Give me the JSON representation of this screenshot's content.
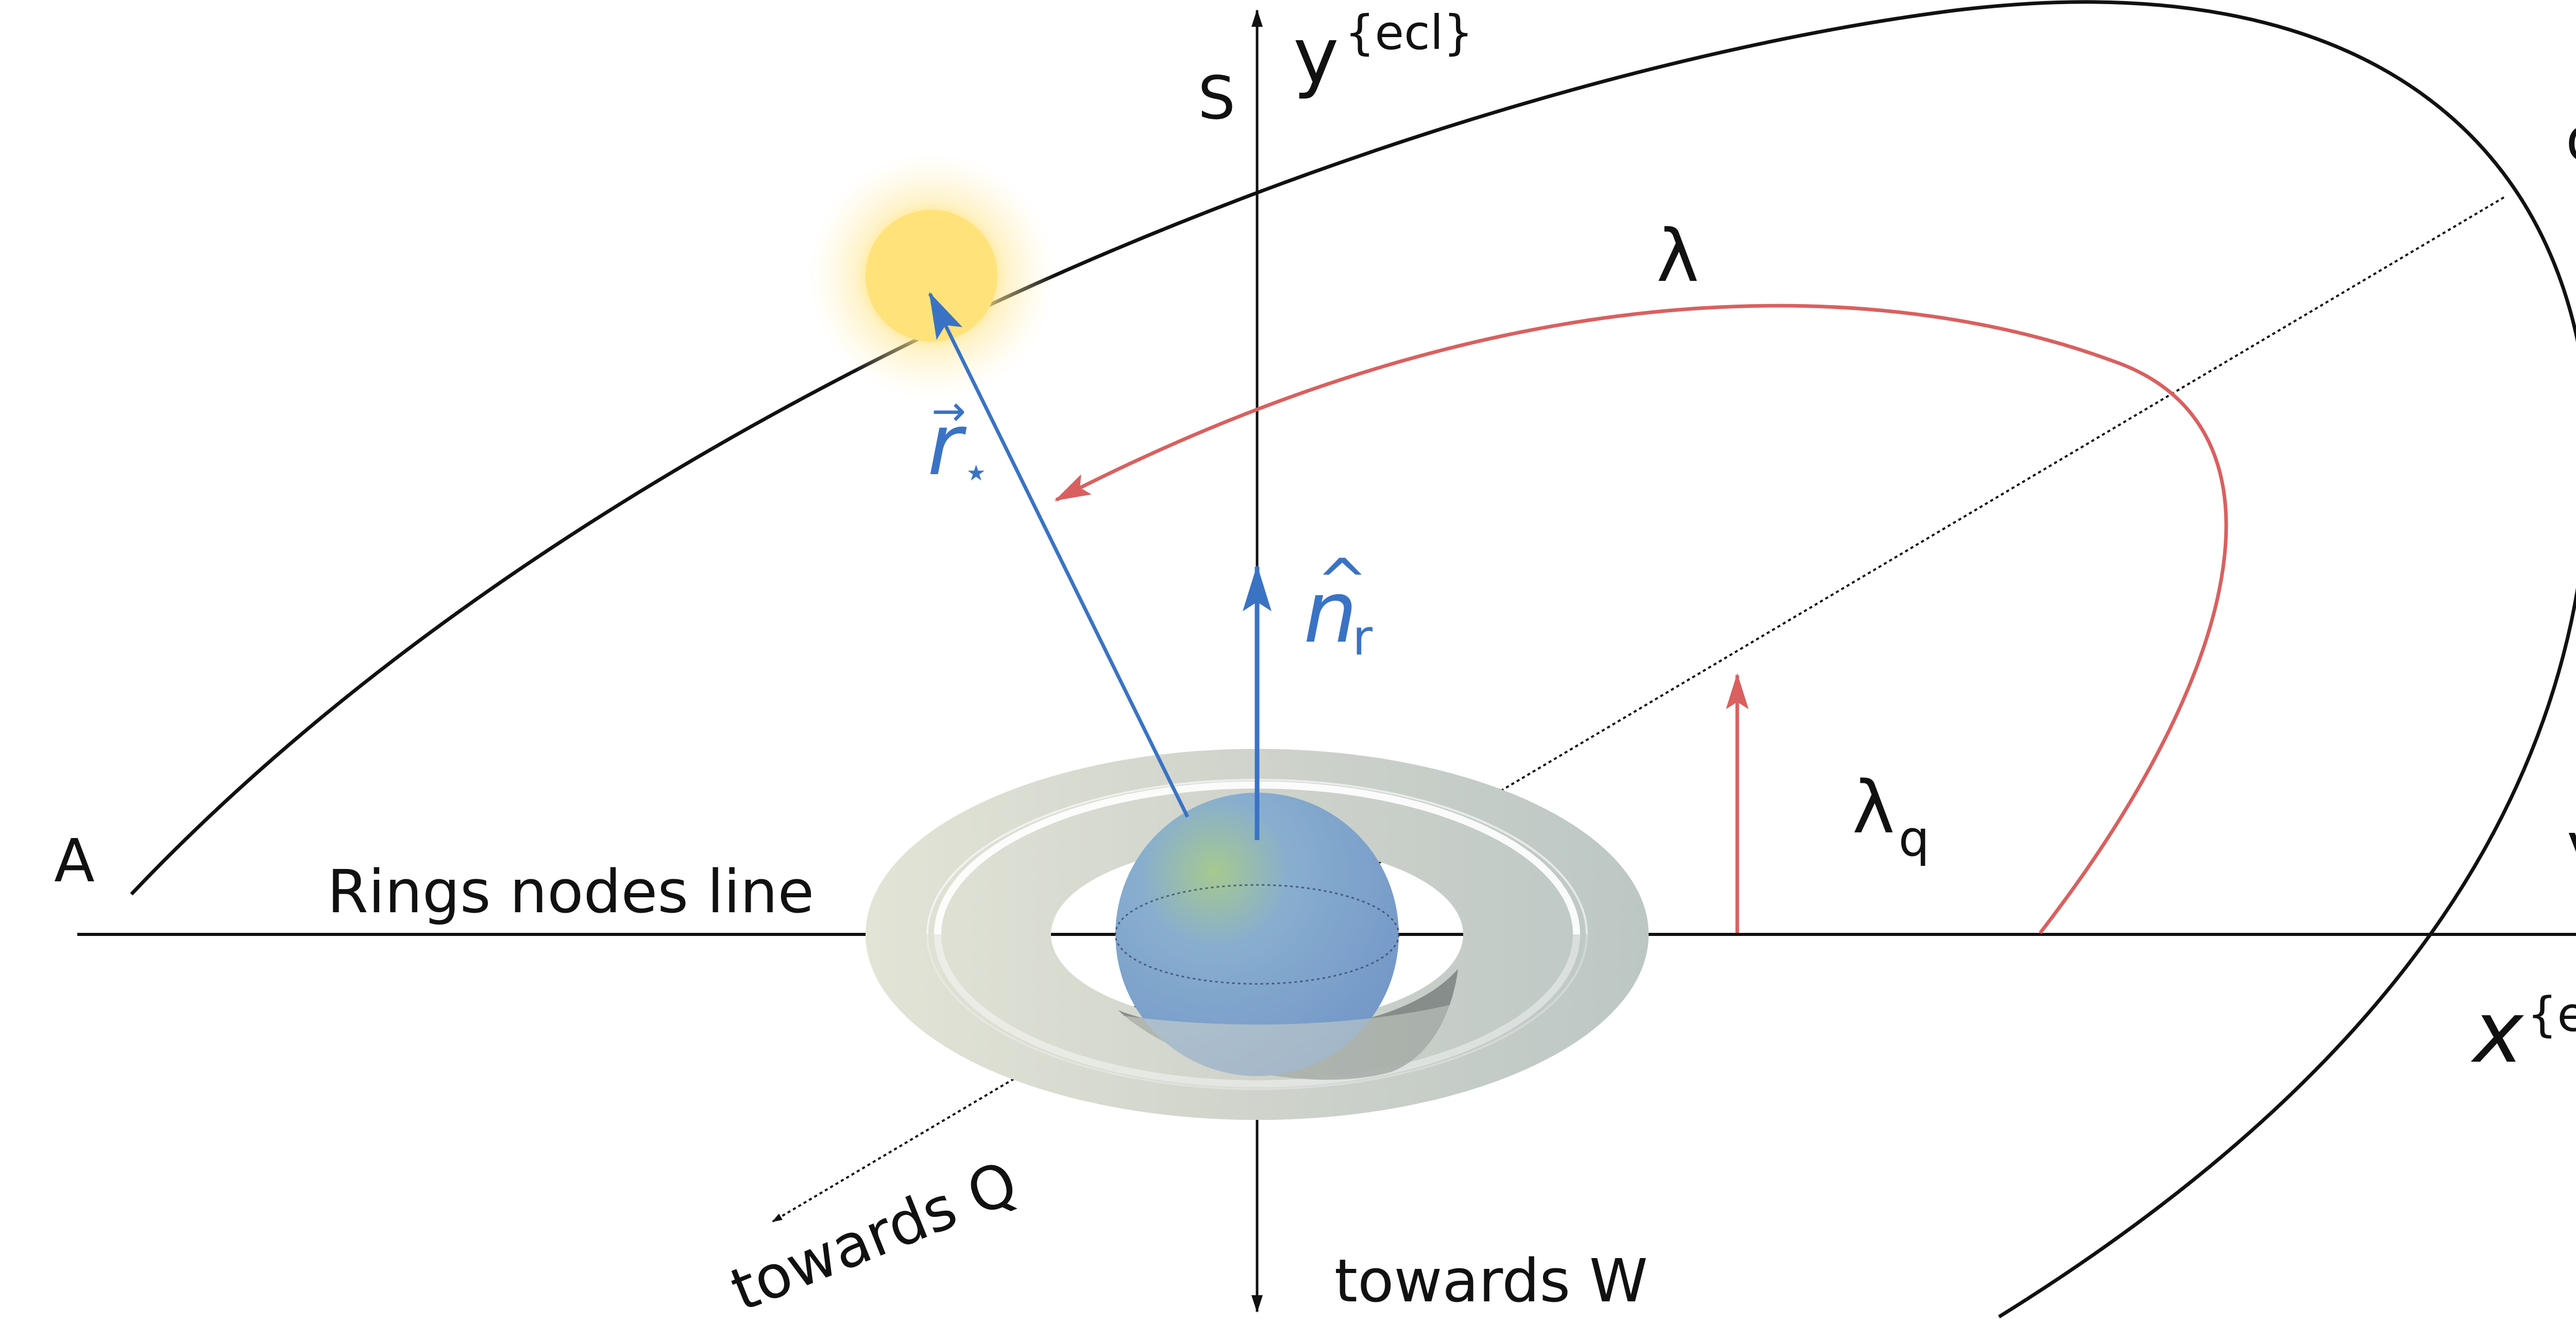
{
  "diagram": {
    "labels": {
      "x_axis": "x",
      "x_axis_sup": "{ecl}",
      "y_axis": "y",
      "y_axis_sup": "{ecl}",
      "point_s": "S",
      "point_q": "q",
      "point_a": "A",
      "point_v": "V",
      "lambda": "λ",
      "lambda_q": "λ",
      "lambda_q_sub": "q",
      "r_star": "r",
      "r_star_sub": "⋆",
      "r_star_arrow": "→",
      "n_r": "n",
      "n_r_hat": "^",
      "n_r_sub": "r",
      "rings_nodes_line": "Rings nodes line",
      "towards_q": "towards Q",
      "towards_w": "towards W"
    },
    "colors": {
      "axis": "#111111",
      "vector_blue": "#3a73c4",
      "angle_red": "#d9605f",
      "ring": "#bfc7c2",
      "planet": "#7fa3cf",
      "sun": "#ffe07a"
    },
    "icons": {
      "sun": "sun-icon",
      "planet": "planet-icon"
    }
  }
}
